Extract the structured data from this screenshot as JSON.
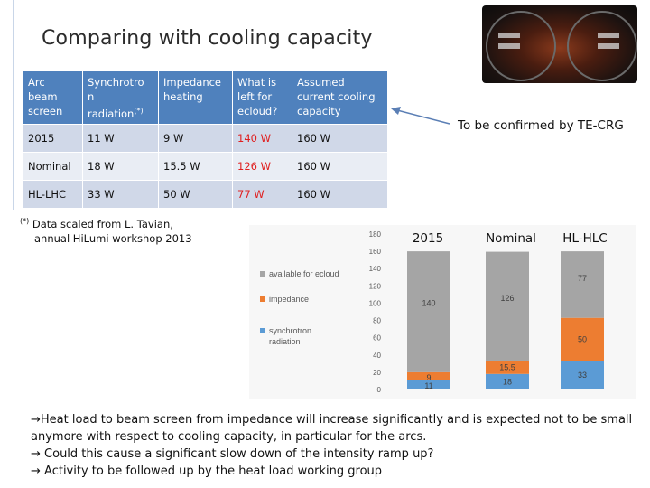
{
  "title": "Comparing with cooling capacity",
  "table": {
    "headers": [
      [
        "Arc",
        "beam",
        "screen"
      ],
      [
        "Synchrotro",
        "n",
        "radiation"
      ],
      [
        "Impedance",
        "heating"
      ],
      [
        "What is",
        "left  for",
        "ecloud?"
      ],
      [
        "Assumed",
        "current cooling",
        "capacity"
      ]
    ],
    "header_sup": "(*)",
    "rows": [
      [
        "2015",
        "11 W",
        "9 W",
        "140 W",
        "160 W"
      ],
      [
        "Nominal",
        "18 W",
        "15.5 W",
        "126 W",
        "160 W"
      ],
      [
        "HL-LHC",
        "33 W",
        "50 W",
        "77 W",
        "160 W"
      ]
    ]
  },
  "footnote": {
    "mark": "(*)",
    "line1": " Data scaled from L. Tavian,",
    "line2": "annual HiLumi workshop 2013"
  },
  "annotation": "To be confirmed by TE-CRG",
  "chart_data": {
    "type": "bar",
    "stacked": true,
    "categories": [
      "2015",
      "Nominal",
      "HL-HLC"
    ],
    "series": [
      {
        "name": "synchrotron radiation",
        "values": [
          11,
          18,
          33
        ],
        "labels": [
          "11",
          "18",
          "33"
        ],
        "color": "#5b9bd5"
      },
      {
        "name": "impedance",
        "values": [
          9,
          15.5,
          50
        ],
        "labels": [
          "9",
          "15.5",
          "50"
        ],
        "color": "#ed7d31"
      },
      {
        "name": "available for ecloud",
        "values": [
          140,
          126,
          77
        ],
        "labels": [
          "140",
          "126",
          "77"
        ],
        "color": "#a5a5a5"
      }
    ],
    "legend_order": [
      "available for ecloud",
      "impedance",
      "synchrotron radiation"
    ],
    "legend_position": "left",
    "ylim": [
      0,
      180
    ],
    "yticks": [
      "0",
      "20",
      "40",
      "60",
      "80",
      "100",
      "120",
      "140",
      "160",
      "180"
    ],
    "grid": false,
    "title": "",
    "xlabel": "",
    "ylabel": ""
  },
  "bullets": [
    "Heat load to beam screen from impedance will increase significantly and is expected not to be small",
    "anymore with respect to cooling capacity, in particular for the arcs.",
    " Could this cause a significant slow down of the intensity ramp up?",
    " Activity to be followed up by the heat load working group"
  ],
  "arrow_glyph": "→"
}
